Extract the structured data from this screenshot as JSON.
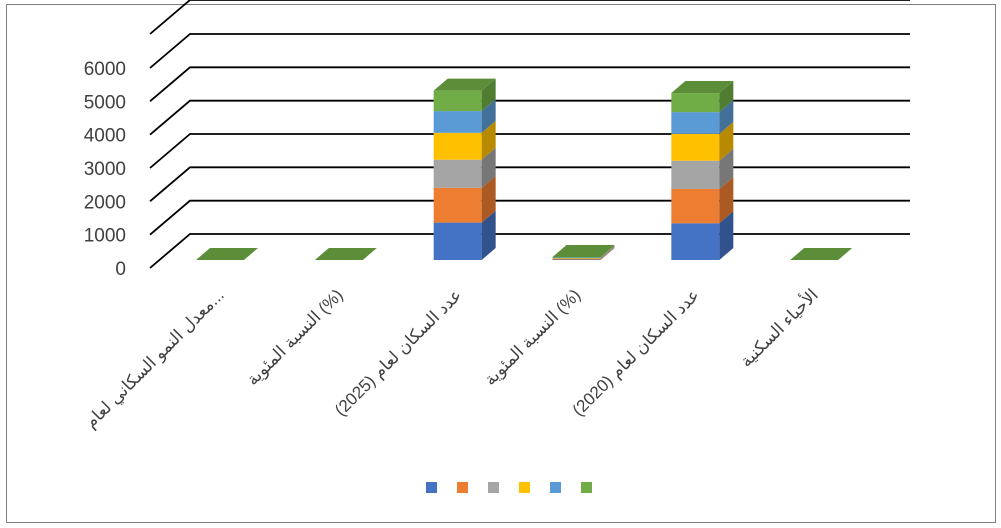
{
  "chart_data": {
    "type": "bar",
    "subtype": "stacked-3d-column",
    "categories": [
      "معدل النمو السكاني لعام...",
      "النسبة المئوية (%)",
      "عدد السكان لعام (2025)",
      "النسبة المئوية (%)",
      "عدد السكان لعام (2020)",
      "الأحياء السكنية"
    ],
    "series": [
      {
        "color": "#4472c4",
        "values": [
          0,
          0,
          1100,
          3,
          1080,
          0
        ]
      },
      {
        "color": "#ed7d31",
        "values": [
          0,
          0,
          1020,
          3,
          1010,
          0
        ]
      },
      {
        "color": "#a5a5a5",
        "values": [
          0,
          0,
          830,
          3,
          830,
          0
        ]
      },
      {
        "color": "#ffc000",
        "values": [
          0,
          0,
          790,
          3,
          790,
          0
        ]
      },
      {
        "color": "#5b9bd5",
        "values": [
          0,
          0,
          640,
          3,
          640,
          0
        ]
      },
      {
        "color": "#70ad47",
        "values": [
          0,
          0,
          600,
          10,
          560,
          0
        ]
      }
    ],
    "yticks": [
      "0",
      "1000",
      "2000",
      "3000",
      "4000",
      "5000",
      "6000"
    ],
    "ylim": [
      0,
      6000
    ],
    "grid": true,
    "legend": "bottom"
  }
}
